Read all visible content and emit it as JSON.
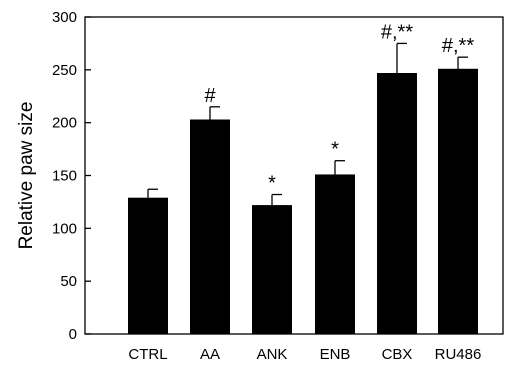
{
  "chart_data": {
    "type": "bar",
    "title": "",
    "xlabel": "",
    "ylabel": "Relative paw size",
    "ylim": [
      0,
      300
    ],
    "yticks": [
      0,
      50,
      100,
      150,
      200,
      250,
      300
    ],
    "grid": false,
    "categories": [
      "CTRL",
      "AA",
      "ANK",
      "ENB",
      "CBX",
      "RU486"
    ],
    "values": [
      129,
      203,
      122,
      151,
      247,
      251
    ],
    "error_upper": [
      8,
      12,
      10,
      13,
      28,
      11
    ],
    "annotations": [
      "",
      "#",
      "*",
      "*",
      "#,**",
      "#,**"
    ],
    "bar_color": "#000000"
  }
}
